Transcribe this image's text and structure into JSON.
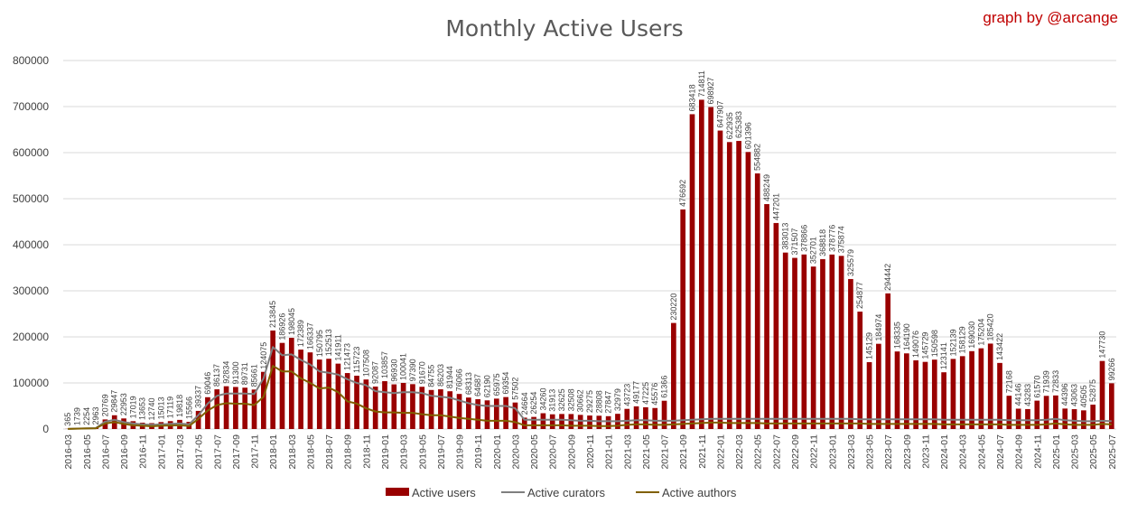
{
  "chart_data": {
    "type": "bar",
    "title": "Monthly Active Users",
    "credit": "graph by @arcange",
    "ylim": [
      0,
      800000
    ],
    "yticks": [
      0,
      100000,
      200000,
      300000,
      400000,
      500000,
      600000,
      700000,
      800000
    ],
    "ytick_labels": [
      "0",
      "100000",
      "200000",
      "300000",
      "400000",
      "500000",
      "600000",
      "700000",
      "800000"
    ],
    "grid": "horizontal",
    "legend_position": "bottom",
    "colors": {
      "users": "#990000",
      "curators": "#7f7f7f",
      "authors": "#806000"
    },
    "categories": [
      "2016-03",
      "2016-04",
      "2016-05",
      "2016-06",
      "2016-07",
      "2016-08",
      "2016-09",
      "2016-10",
      "2016-11",
      "2016-12",
      "2017-01",
      "2017-02",
      "2017-03",
      "2017-04",
      "2017-05",
      "2017-06",
      "2017-07",
      "2017-08",
      "2017-09",
      "2017-10",
      "2017-11",
      "2017-12",
      "2018-01",
      "2018-02",
      "2018-03",
      "2018-04",
      "2018-05",
      "2018-06",
      "2018-07",
      "2018-08",
      "2018-09",
      "2018-10",
      "2018-11",
      "2018-12",
      "2019-01",
      "2019-02",
      "2019-03",
      "2019-04",
      "2019-05",
      "2019-06",
      "2019-07",
      "2019-08",
      "2019-09",
      "2019-10",
      "2019-11",
      "2019-12",
      "2020-01",
      "2020-02",
      "2020-03",
      "2020-04",
      "2020-05",
      "2020-06",
      "2020-07",
      "2020-08",
      "2020-09",
      "2020-10",
      "2020-11",
      "2020-12",
      "2021-01",
      "2021-02",
      "2021-03",
      "2021-04",
      "2021-05",
      "2021-06",
      "2021-07",
      "2021-08",
      "2021-09",
      "2021-10",
      "2021-11",
      "2021-12",
      "2022-01",
      "2022-02",
      "2022-03",
      "2022-04",
      "2022-05",
      "2022-06",
      "2022-07",
      "2022-08",
      "2022-09",
      "2022-10",
      "2022-11",
      "2022-12",
      "2023-01",
      "2023-02",
      "2023-03",
      "2023-04",
      "2023-05",
      "2023-06",
      "2023-07",
      "2023-08",
      "2023-09",
      "2023-10",
      "2023-11",
      "2023-12",
      "2024-01",
      "2024-02",
      "2024-03",
      "2024-04",
      "2024-05",
      "2024-06",
      "2024-07",
      "2024-08",
      "2024-09",
      "2024-10",
      "2024-11",
      "2024-12",
      "2025-01",
      "2025-02",
      "2025-03",
      "2025-04",
      "2025-05",
      "2025-06",
      "2025-07"
    ],
    "xtick_labels": [
      "2016-03",
      "2016-05",
      "2016-07",
      "2016-09",
      "2016-11",
      "2017-01",
      "2017-03",
      "2017-05",
      "2017-07",
      "2017-09",
      "2017-11",
      "2018-01",
      "2018-03",
      "2018-05",
      "2018-07",
      "2018-09",
      "2018-11",
      "2019-01",
      "2019-03",
      "2019-05",
      "2019-07",
      "2019-09",
      "2019-11",
      "2020-01",
      "2020-03",
      "2020-05",
      "2020-07",
      "2020-09",
      "2020-11",
      "2021-01",
      "2021-03",
      "2021-05",
      "2021-07",
      "2021-09",
      "2021-11",
      "2022-01",
      "2022-03",
      "2022-05",
      "2022-07",
      "2022-09",
      "2022-11",
      "2023-01",
      "2023-03",
      "2023-05",
      "2023-07",
      "2023-09",
      "2023-11",
      "2024-01",
      "2024-03",
      "2024-05",
      "2024-07",
      "2024-09",
      "2024-11",
      "2025-01",
      "2025-03",
      "2025-05",
      "2025-07"
    ],
    "series": [
      {
        "name": "Active users",
        "type": "bar",
        "values": [
          365,
          1739,
          2254,
          2963,
          20769,
          29847,
          22953,
          17019,
          13653,
          12740,
          15013,
          17119,
          19818,
          15566,
          39337,
          69046,
          86137,
          92834,
          91300,
          89731,
          85661,
          124075,
          213845,
          186926,
          198045,
          172389,
          166337,
          150795,
          152513,
          141911,
          121473,
          115723,
          107508,
          92087,
          103857,
          96930,
          100041,
          97390,
          91670,
          84755,
          86203,
          81944,
          76066,
          68313,
          64687,
          62190,
          65975,
          69354,
          57502,
          24664,
          26254,
          34260,
          31913,
          32625,
          32508,
          30662,
          29275,
          28808,
          27847,
          32979,
          43723,
          49177,
          47225,
          45576,
          61366,
          230220,
          476692,
          683418,
          714811,
          698927,
          647907,
          622935,
          625383,
          601396,
          554882,
          488249,
          447201,
          383013,
          371507,
          378866,
          352701,
          368818,
          378776,
          375874,
          325579,
          254877,
          145129,
          184974,
          294442,
          168335,
          164190,
          149076,
          145729,
          150598,
          123141,
          152139,
          158129,
          169030,
          175204,
          185420,
          143422,
          72168,
          44146,
          43283,
          61570,
          71939,
          72833,
          44396,
          43063,
          40505,
          52875,
          147730,
          99266
        ]
      },
      {
        "name": "Active curators",
        "type": "line",
        "values": [
          300,
          1000,
          1500,
          2000,
          16000,
          20000,
          15000,
          12000,
          10000,
          9000,
          10000,
          11000,
          12000,
          10000,
          30000,
          55000,
          72000,
          77000,
          77000,
          77000,
          76000,
          110000,
          178000,
          160000,
          162000,
          150000,
          140000,
          125000,
          122000,
          118000,
          108000,
          100000,
          95000,
          82000,
          80000,
          78000,
          80000,
          80000,
          78000,
          72000,
          70000,
          68000,
          62000,
          56000,
          52000,
          50000,
          50000,
          50000,
          45000,
          20000,
          20000,
          20000,
          20000,
          20000,
          19000,
          18000,
          18000,
          17000,
          17000,
          17000,
          18000,
          19000,
          19000,
          18000,
          18000,
          18000,
          19000,
          20000,
          21000,
          22000,
          22000,
          22000,
          22000,
          22000,
          22000,
          22000,
          22000,
          22000,
          22000,
          22000,
          22000,
          22000,
          22000,
          22000,
          22000,
          21000,
          21000,
          21000,
          21000,
          21000,
          21000,
          21000,
          21000,
          21000,
          20000,
          20000,
          20000,
          20000,
          20000,
          20000,
          20000,
          19000,
          19000,
          19000,
          19000,
          20000,
          22000,
          19000,
          18000,
          17000,
          17000,
          18000,
          17000
        ]
      },
      {
        "name": "Active authors",
        "type": "line",
        "values": [
          200,
          800,
          1200,
          1500,
          12000,
          15000,
          11000,
          8000,
          7000,
          6000,
          7000,
          7500,
          8000,
          6500,
          22000,
          40000,
          52000,
          56000,
          55000,
          55000,
          52000,
          70000,
          137000,
          125000,
          125000,
          110000,
          100000,
          88000,
          90000,
          80000,
          60000,
          55000,
          45000,
          38000,
          36000,
          36000,
          35000,
          35000,
          32000,
          30000,
          30000,
          27000,
          24000,
          22000,
          20000,
          18000,
          18000,
          18000,
          15000,
          8000,
          8000,
          8000,
          8000,
          8000,
          7000,
          7000,
          7000,
          6500,
          6500,
          7000,
          9000,
          10000,
          10000,
          9000,
          9000,
          10000,
          11000,
          12000,
          13000,
          14000,
          14000,
          13000,
          13000,
          13000,
          13000,
          12000,
          12000,
          12000,
          12000,
          12000,
          12000,
          12000,
          12000,
          12000,
          12000,
          12000,
          11000,
          11000,
          11000,
          11000,
          11000,
          11000,
          11000,
          11000,
          10000,
          10000,
          10000,
          10000,
          10000,
          10000,
          10000,
          9000,
          9000,
          9000,
          9000,
          10000,
          12000,
          10000,
          9000,
          9000,
          9000,
          11000,
          10000
        ]
      }
    ]
  }
}
